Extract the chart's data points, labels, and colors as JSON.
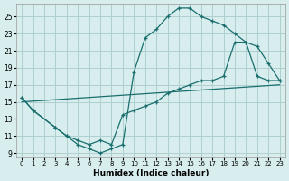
{
  "xlabel": "Humidex (Indice chaleur)",
  "bg_color": "#d8eeee",
  "grid_color": "#afd0d0",
  "line_color": "#1a6e6e",
  "xlim": [
    -0.5,
    23.5
  ],
  "ylim": [
    8.5,
    26.5
  ],
  "xticks": [
    0,
    1,
    2,
    3,
    4,
    5,
    6,
    7,
    8,
    9,
    10,
    11,
    12,
    13,
    14,
    15,
    16,
    17,
    18,
    19,
    20,
    21,
    22,
    23
  ],
  "yticks": [
    9,
    11,
    13,
    15,
    17,
    19,
    21,
    23,
    25
  ],
  "line1_x": [
    0,
    1,
    3,
    4,
    5,
    6,
    7,
    8,
    9,
    10,
    11,
    12,
    13,
    14,
    15,
    16,
    17,
    18,
    19,
    20,
    21,
    22,
    23
  ],
  "line1_y": [
    15.5,
    14.0,
    12.0,
    11.0,
    10.0,
    9.5,
    9.0,
    9.5,
    10.0,
    18.5,
    22.5,
    23.5,
    25.0,
    26.0,
    26.0,
    25.0,
    24.5,
    24.0,
    23.0,
    22.0,
    21.5,
    19.5,
    17.5
  ],
  "line2_x": [
    0,
    1,
    3,
    4,
    5,
    6,
    7,
    8,
    9,
    10,
    11,
    12,
    13,
    14,
    15,
    16,
    17,
    18,
    19,
    20,
    21,
    22,
    23
  ],
  "line2_y": [
    15.5,
    14.0,
    12.0,
    11.0,
    10.5,
    10.0,
    10.5,
    10.0,
    13.5,
    14.0,
    14.5,
    15.0,
    16.0,
    16.5,
    17.0,
    17.5,
    17.5,
    18.0,
    22.0,
    22.0,
    18.0,
    17.5,
    17.5
  ],
  "line3_x": [
    0,
    23
  ],
  "line3_y": [
    15.0,
    17.0
  ]
}
